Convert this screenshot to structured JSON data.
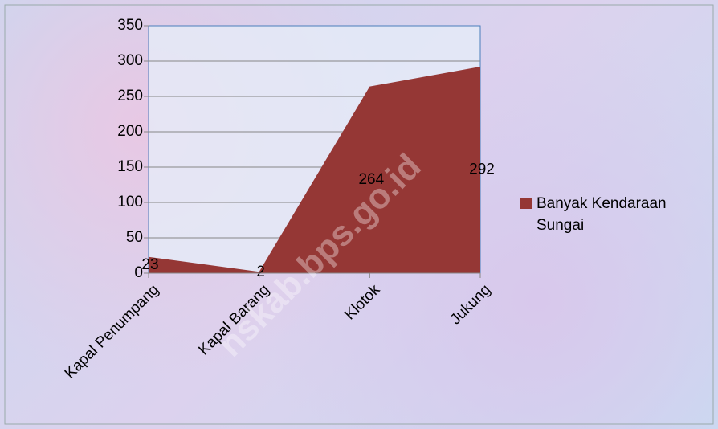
{
  "chart_data": {
    "type": "area",
    "categories": [
      "Kapal Penumpang",
      "Kapal Barang",
      "Klotok",
      "Jukung"
    ],
    "series": [
      {
        "name": "Banyak Kendaraan Sungai",
        "color": "#953735",
        "values": [
          23,
          2,
          264,
          292
        ]
      }
    ],
    "ylim": [
      0,
      350
    ],
    "yticks": [
      0,
      50,
      100,
      150,
      200,
      250,
      300,
      350
    ],
    "grid": true,
    "legend": "right",
    "watermark": "nskab.bps.go.id"
  }
}
